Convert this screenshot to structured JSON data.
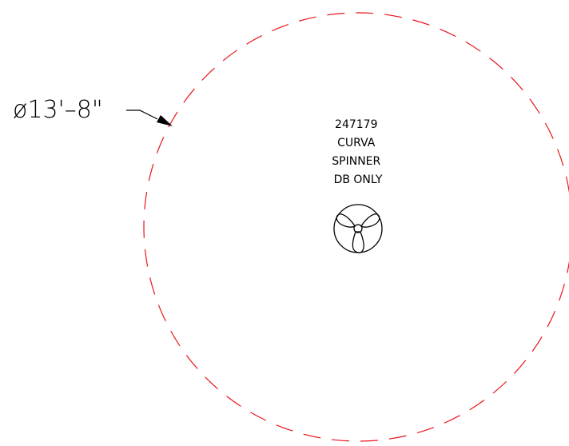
{
  "dimension": {
    "label": "ø13'–8\""
  },
  "fixture": {
    "lines": [
      "247179",
      "CURVA",
      "SPINNER",
      "DB ONLY"
    ]
  },
  "colors": {
    "coverage_circle": "#e8141b",
    "linework": "#000000",
    "background": "#ffffff"
  },
  "icons": {
    "fixture_symbol": "fan-spinner-icon"
  }
}
